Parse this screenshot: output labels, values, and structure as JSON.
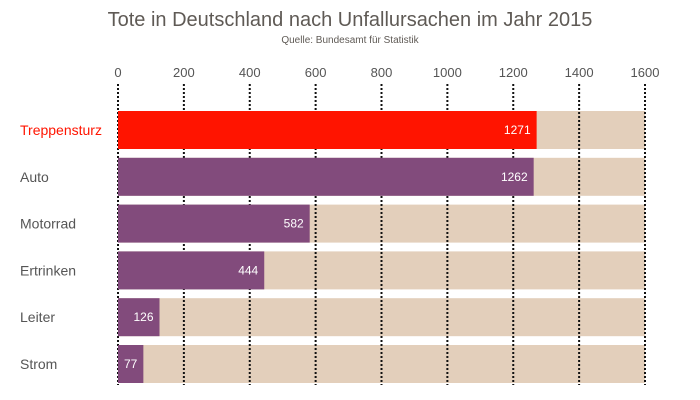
{
  "chart_data": {
    "type": "bar",
    "orientation": "horizontal",
    "title": "Tote in Deutschland nach Unfallursachen im Jahr 2015",
    "subtitle": "Quelle: Bundesamt für Statistik",
    "categories": [
      "Treppensturz",
      "Auto",
      "Motorrad",
      "Ertrinken",
      "Leiter",
      "Strom"
    ],
    "values": [
      1271,
      1262,
      582,
      444,
      126,
      77
    ],
    "highlight": "Treppensturz",
    "xlim": [
      0,
      1600
    ],
    "xticks": [
      0,
      200,
      400,
      600,
      800,
      1000,
      1200,
      1400,
      1600
    ],
    "axis_position": "top",
    "grid": "vertical dotted",
    "colors": {
      "highlight": "#ff1400",
      "bar": "#824b7c",
      "background_bar": "#e3cfbb",
      "title": "#5f5a55",
      "label": "#555555",
      "highlight_label": "#ff1400"
    }
  }
}
